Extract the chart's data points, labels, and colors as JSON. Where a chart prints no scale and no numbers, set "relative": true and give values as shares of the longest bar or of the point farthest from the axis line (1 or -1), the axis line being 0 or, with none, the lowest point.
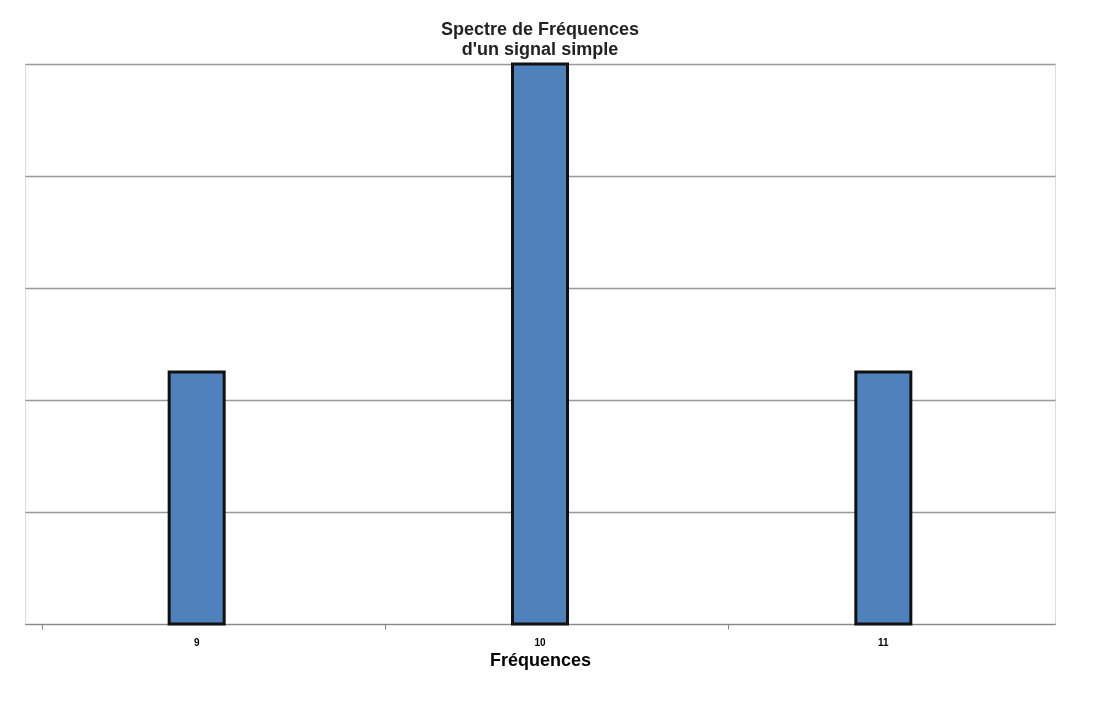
{
  "chart_data": {
    "type": "bar",
    "title": [
      "Spectre de Fréquences",
      "d'un signal simple"
    ],
    "xlabel": "Fréquences",
    "categories": [
      "9",
      "10",
      "11"
    ],
    "values": [
      0.45,
      1,
      0.45
    ],
    "color": "#4f81bd",
    "relative": true,
    "grid": "y"
  }
}
